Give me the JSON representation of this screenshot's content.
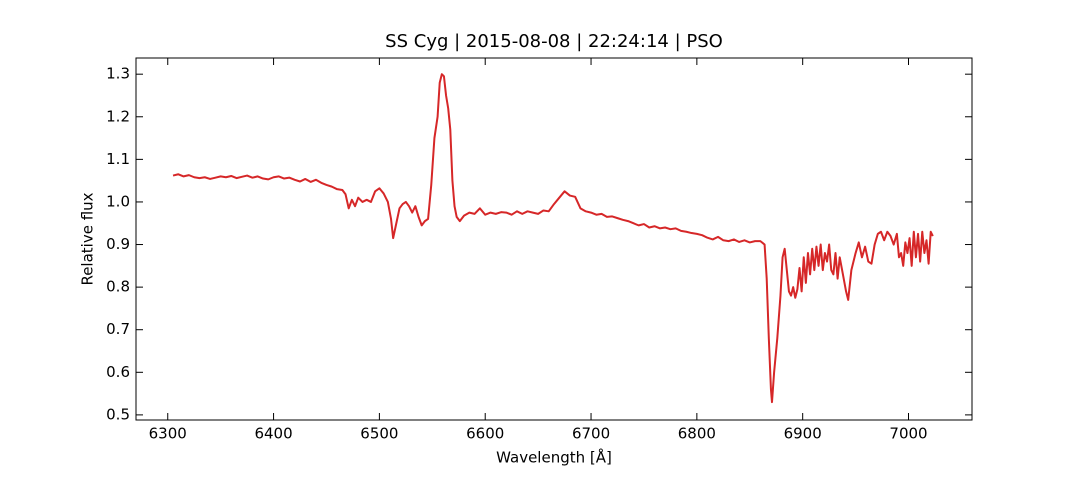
{
  "chart_data": {
    "type": "line",
    "title": "SS Cyg | 2015-08-08 | 22:24:14 | PSO",
    "x_label": "Wavelength [Å]",
    "y_label": "Relative flux",
    "color": "#d62728",
    "xlim": [
      6270,
      7060
    ],
    "ylim": [
      0.488,
      1.338
    ],
    "xticks": [
      6300,
      6400,
      6500,
      6600,
      6700,
      6800,
      6900,
      7000
    ],
    "yticks": [
      0.5,
      0.6,
      0.7,
      0.8,
      0.9,
      {
        "value": 1,
        "label": "1.0"
      },
      1.1,
      1.2,
      1.3
    ],
    "x": [
      6305,
      6310,
      6315,
      6320,
      6325,
      6330,
      6335,
      6340,
      6345,
      6350,
      6355,
      6360,
      6365,
      6370,
      6375,
      6380,
      6385,
      6390,
      6395,
      6400,
      6405,
      6410,
      6415,
      6420,
      6425,
      6430,
      6435,
      6440,
      6445,
      6450,
      6455,
      6460,
      6465,
      6468,
      6471,
      6474,
      6477,
      6480,
      6484,
      6488,
      6492,
      6496,
      6500,
      6504,
      6508,
      6511,
      6513,
      6516,
      6519,
      6522,
      6525,
      6528,
      6531,
      6534,
      6537,
      6540,
      6543,
      6546,
      6549,
      6552,
      6555,
      6557,
      6559,
      6561,
      6563,
      6565,
      6567,
      6569,
      6571,
      6573,
      6576,
      6580,
      6585,
      6590,
      6595,
      6600,
      6605,
      6610,
      6615,
      6620,
      6625,
      6630,
      6635,
      6640,
      6645,
      6650,
      6655,
      6660,
      6665,
      6670,
      6675,
      6680,
      6685,
      6690,
      6695,
      6700,
      6705,
      6710,
      6715,
      6720,
      6725,
      6730,
      6735,
      6740,
      6745,
      6750,
      6755,
      6760,
      6765,
      6770,
      6775,
      6780,
      6785,
      6790,
      6795,
      6800,
      6805,
      6810,
      6815,
      6820,
      6825,
      6830,
      6835,
      6840,
      6845,
      6850,
      6855,
      6860,
      6864,
      6866,
      6868,
      6870,
      6871,
      6873,
      6876,
      6879,
      6881,
      6883,
      6885,
      6887,
      6889,
      6891,
      6893,
      6895,
      6897,
      6899,
      6901,
      6903,
      6905,
      6907,
      6909,
      6911,
      6913,
      6915,
      6917,
      6919,
      6921,
      6923,
      6925,
      6927,
      6929,
      6931,
      6933,
      6935,
      6938,
      6941,
      6943,
      6946,
      6950,
      6953,
      6956,
      6959,
      6962,
      6965,
      6968,
      6971,
      6974,
      6977,
      6980,
      6983,
      6986,
      6989,
      6991,
      6993,
      6995,
      6997,
      6999,
      7001,
      7003,
      7005,
      7007,
      7009,
      7011,
      7013,
      7015,
      7017,
      7019,
      7021,
      7023
    ],
    "values": [
      1.062,
      1.065,
      1.06,
      1.063,
      1.058,
      1.056,
      1.058,
      1.054,
      1.057,
      1.06,
      1.058,
      1.061,
      1.056,
      1.059,
      1.062,
      1.057,
      1.06,
      1.055,
      1.053,
      1.058,
      1.06,
      1.055,
      1.057,
      1.052,
      1.048,
      1.054,
      1.047,
      1.052,
      1.045,
      1.04,
      1.036,
      1.03,
      1.028,
      1.018,
      0.985,
      1.005,
      0.99,
      1.01,
      1.0,
      1.005,
      1.0,
      1.025,
      1.032,
      1.02,
      1.0,
      0.96,
      0.915,
      0.95,
      0.985,
      0.995,
      1.0,
      0.99,
      0.975,
      0.99,
      0.965,
      0.945,
      0.955,
      0.96,
      1.04,
      1.15,
      1.2,
      1.28,
      1.3,
      1.295,
      1.25,
      1.22,
      1.17,
      1.05,
      0.99,
      0.965,
      0.955,
      0.968,
      0.975,
      0.972,
      0.985,
      0.97,
      0.975,
      0.972,
      0.976,
      0.975,
      0.97,
      0.978,
      0.972,
      0.978,
      0.975,
      0.972,
      0.98,
      0.978,
      0.995,
      1.01,
      1.025,
      1.015,
      1.012,
      0.985,
      0.978,
      0.975,
      0.97,
      0.972,
      0.965,
      0.966,
      0.962,
      0.958,
      0.955,
      0.95,
      0.945,
      0.948,
      0.94,
      0.943,
      0.938,
      0.94,
      0.936,
      0.938,
      0.932,
      0.93,
      0.927,
      0.925,
      0.922,
      0.916,
      0.912,
      0.918,
      0.91,
      0.908,
      0.912,
      0.906,
      0.91,
      0.905,
      0.908,
      0.908,
      0.9,
      0.82,
      0.68,
      0.56,
      0.53,
      0.6,
      0.68,
      0.78,
      0.87,
      0.89,
      0.84,
      0.79,
      0.78,
      0.8,
      0.775,
      0.795,
      0.845,
      0.79,
      0.87,
      0.81,
      0.88,
      0.83,
      0.89,
      0.84,
      0.895,
      0.85,
      0.9,
      0.84,
      0.88,
      0.86,
      0.9,
      0.84,
      0.83,
      0.88,
      0.82,
      0.87,
      0.83,
      0.79,
      0.77,
      0.84,
      0.88,
      0.905,
      0.87,
      0.895,
      0.86,
      0.855,
      0.9,
      0.925,
      0.93,
      0.91,
      0.93,
      0.92,
      0.9,
      0.925,
      0.87,
      0.88,
      0.85,
      0.905,
      0.88,
      0.915,
      0.85,
      0.93,
      0.87,
      0.925,
      0.86,
      0.93,
      0.88,
      0.91,
      0.855,
      0.93,
      0.92
    ]
  }
}
